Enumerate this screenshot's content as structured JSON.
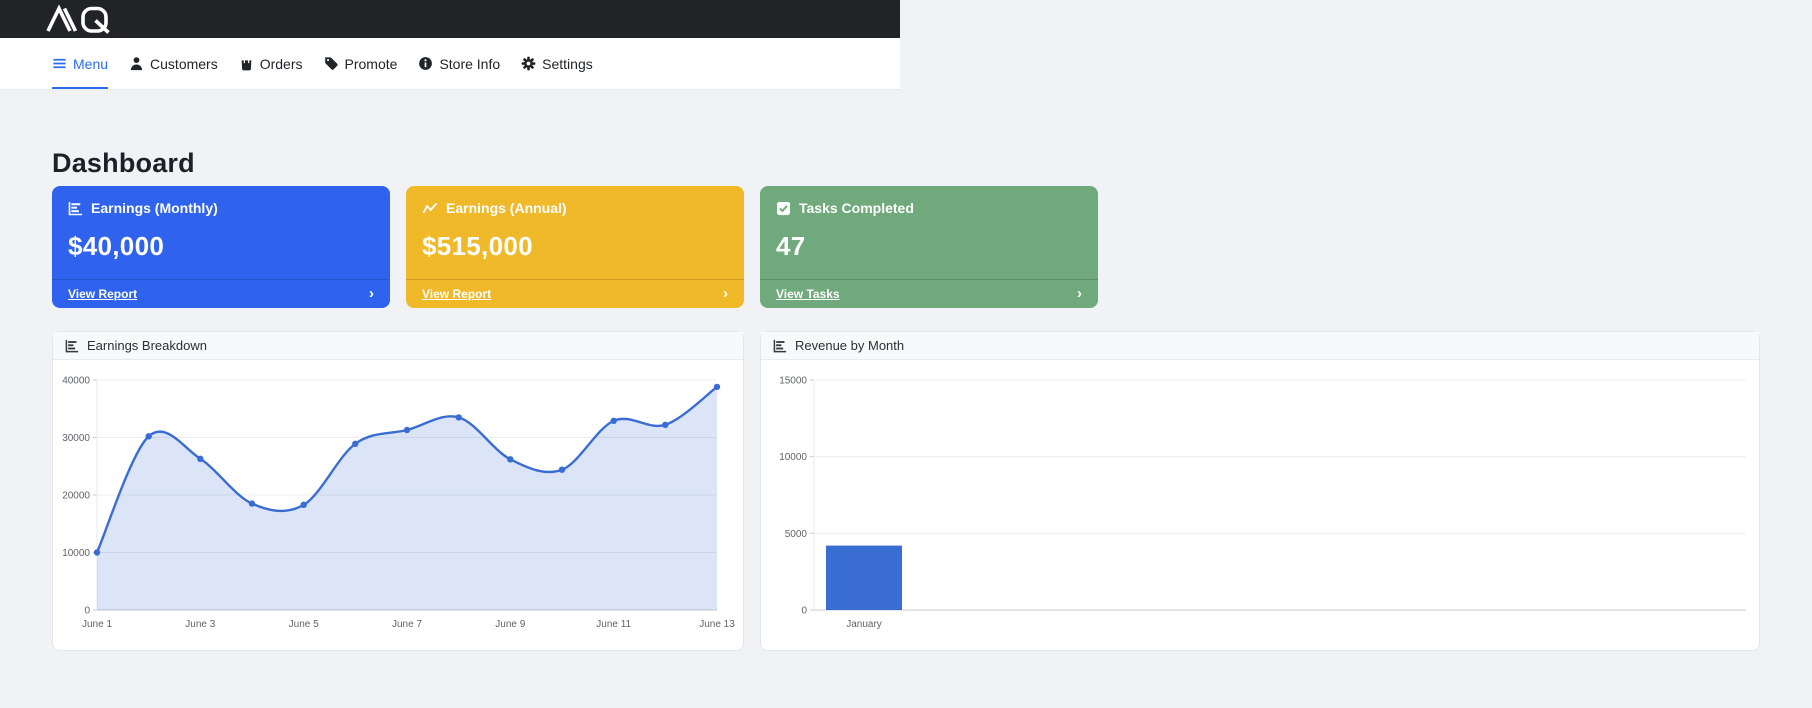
{
  "topbar": {
    "brand": "AIQ",
    "bg": "#212327"
  },
  "nav": {
    "active_color": "#2b6ce8",
    "items": [
      {
        "label": "Menu",
        "icon": "hamburger-icon",
        "active": true
      },
      {
        "label": "Customers",
        "icon": "person-icon",
        "active": false
      },
      {
        "label": "Orders",
        "icon": "shopping-bag-icon",
        "active": false
      },
      {
        "label": "Promote",
        "icon": "tag-icon",
        "active": false
      },
      {
        "label": "Store Info",
        "icon": "info-circle-icon",
        "active": false
      },
      {
        "label": "Settings",
        "icon": "gear-icon",
        "active": false
      }
    ]
  },
  "page": {
    "title": "Dashboard"
  },
  "stat_cards": [
    {
      "title": "Earnings (Monthly)",
      "value": "$40,000",
      "footer_label": "View Report",
      "color": "#2f63ee",
      "icon": "bar-chart-icon"
    },
    {
      "title": "Earnings (Annual)",
      "value": "$515,000",
      "footer_label": "View Report",
      "color": "#f0b929",
      "icon": "line-chart-icon"
    },
    {
      "title": "Tasks Completed",
      "value": "47",
      "footer_label": "View Tasks",
      "color": "#70a97b",
      "icon": "check-square-icon"
    }
  ],
  "chart_data": [
    {
      "type": "area",
      "title": "Earnings Breakdown",
      "x": [
        "June 1",
        "June 2",
        "June 3",
        "June 4",
        "June 5",
        "June 6",
        "June 7",
        "June 8",
        "June 9",
        "June 10",
        "June 11",
        "June 12",
        "June 13"
      ],
      "values": [
        10000,
        30200,
        26300,
        18500,
        18300,
        28900,
        31300,
        33500,
        26200,
        24400,
        32900,
        32200,
        38800
      ],
      "xlabel": "",
      "ylabel": "",
      "ylim": [
        0,
        40000
      ],
      "yticks": [
        0,
        10000,
        20000,
        30000,
        40000
      ],
      "xtick_every": 2,
      "grid": true,
      "legend": false,
      "line_color": "#3a6dd4",
      "fill_color": "rgba(58,109,212,0.18)",
      "point_color": "#3a6dd4"
    },
    {
      "type": "bar",
      "title": "Revenue by Month",
      "categories": [
        "January"
      ],
      "values": [
        4200
      ],
      "xlabel": "",
      "ylabel": "",
      "ylim": [
        0,
        15000
      ],
      "yticks": [
        0,
        5000,
        10000,
        15000
      ],
      "grid": true,
      "legend": false,
      "bar_color": "#3a6dd4"
    }
  ]
}
